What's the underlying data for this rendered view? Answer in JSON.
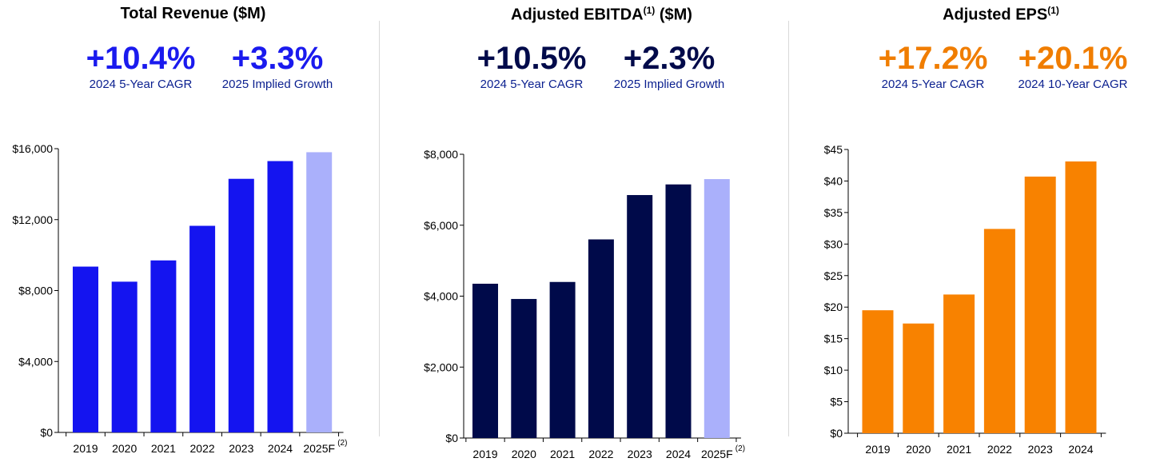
{
  "panels": [
    {
      "title": "Total Revenue ($M)",
      "title_sup": "",
      "title_suffix": "",
      "kpis": [
        {
          "value": "+10.4%",
          "label": "2024 5-Year CAGR"
        },
        {
          "value": "+3.3%",
          "label": "2025 Implied Growth"
        }
      ],
      "kpi_color": "#1a1aee"
    },
    {
      "title": "Adjusted EBITDA",
      "title_sup": "(1)",
      "title_suffix": " ($M)",
      "kpis": [
        {
          "value": "+10.5%",
          "label": "2024 5-Year CAGR"
        },
        {
          "value": "+2.3%",
          "label": "2025 Implied Growth"
        }
      ],
      "kpi_color": "#000a4a"
    },
    {
      "title": "Adjusted EPS",
      "title_sup": "(1)",
      "title_suffix": "",
      "kpis": [
        {
          "value": "+17.2%",
          "label": "2024 5-Year CAGR"
        },
        {
          "value": "+20.1%",
          "label": "2024 10-Year CAGR"
        }
      ],
      "kpi_color": "#f07d00"
    }
  ],
  "chart_data": [
    {
      "type": "bar",
      "categories": [
        "2019",
        "2020",
        "2021",
        "2022",
        "2023",
        "2024",
        "2025F"
      ],
      "category_footnote": {
        "category": "2025F",
        "note": "(2)"
      },
      "values": [
        9350,
        8500,
        9700,
        11650,
        14300,
        15300,
        15800
      ],
      "ylim": [
        0,
        16000
      ],
      "yticks": [
        0,
        4000,
        8000,
        12000,
        16000
      ],
      "ytick_labels": [
        "$0",
        "$4,000",
        "$8,000",
        "$12,000",
        "$16,000"
      ],
      "bar_colors": [
        "#1414f0",
        "#1414f0",
        "#1414f0",
        "#1414f0",
        "#1414f0",
        "#1414f0",
        "#aab0fb"
      ],
      "grid": false
    },
    {
      "type": "bar",
      "categories": [
        "2019",
        "2020",
        "2021",
        "2022",
        "2023",
        "2024",
        "2025F"
      ],
      "category_footnote": {
        "category": "2025F",
        "note": "(2)"
      },
      "values": [
        4350,
        3920,
        4400,
        5600,
        6850,
        7150,
        7300
      ],
      "ylim": [
        0,
        8000
      ],
      "yticks": [
        0,
        2000,
        4000,
        6000,
        8000
      ],
      "ytick_labels": [
        "$0",
        "$2,000",
        "$4,000",
        "$6,000",
        "$8,000"
      ],
      "bar_colors": [
        "#000a4a",
        "#000a4a",
        "#000a4a",
        "#000a4a",
        "#000a4a",
        "#000a4a",
        "#aab0fb"
      ],
      "grid": false
    },
    {
      "type": "bar",
      "categories": [
        "2019",
        "2020",
        "2021",
        "2022",
        "2023",
        "2024"
      ],
      "values": [
        19.5,
        17.4,
        22.0,
        32.4,
        40.7,
        43.1
      ],
      "ylim": [
        0,
        45
      ],
      "yticks": [
        0,
        5,
        10,
        15,
        20,
        25,
        30,
        35,
        40,
        45
      ],
      "ytick_labels": [
        "$0",
        "$5",
        "$10",
        "$15",
        "$20",
        "$25",
        "$30",
        "$35",
        "$40",
        "$45"
      ],
      "bar_colors": [
        "#f88200",
        "#f88200",
        "#f88200",
        "#f88200",
        "#f88200",
        "#f88200"
      ],
      "grid": false
    }
  ]
}
